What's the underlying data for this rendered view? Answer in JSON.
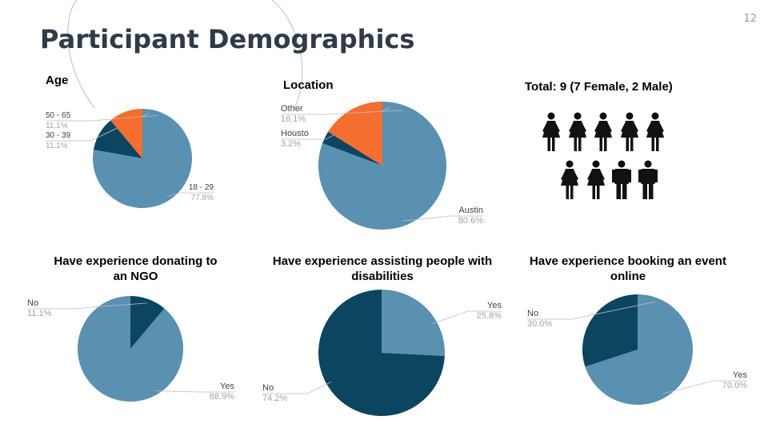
{
  "page_number": "12",
  "slide_title": "Participant Demographics",
  "colors": {
    "blue": "#5a90b0",
    "navy": "#0c4560",
    "orange": "#f46e30",
    "title": "#2f3b47"
  },
  "participants": {
    "total_text": "Total: 9 (7 Female, 2 Male)",
    "row1": [
      "female-icon",
      "female-icon",
      "female-icon",
      "female-icon",
      "female-icon"
    ],
    "row2": [
      "female-icon",
      "female-icon",
      "male-icon",
      "male-icon"
    ]
  },
  "chart_data": [
    {
      "type": "pie",
      "title": "Age",
      "slices": [
        {
          "label": "18 - 29",
          "value": 77.8,
          "pct": "77.8%",
          "color": "#5a90b0"
        },
        {
          "label": "30 - 39",
          "value": 11.1,
          "pct": "11.1%",
          "color": "#0c4560"
        },
        {
          "label": "50 - 65",
          "value": 11.1,
          "pct": "11.1%",
          "color": "#f46e30"
        }
      ]
    },
    {
      "type": "pie",
      "title": "Location",
      "slices": [
        {
          "label": "Austin",
          "value": 80.6,
          "pct": "80.6%",
          "color": "#5a90b0"
        },
        {
          "label": "Housto",
          "value": 3.2,
          "pct": "3.2%",
          "color": "#0c4560"
        },
        {
          "label": "Other",
          "value": 16.1,
          "pct": "16.1%",
          "color": "#f46e30"
        }
      ]
    },
    {
      "type": "pie",
      "title": "Have experience donating to an NGO",
      "slices": [
        {
          "label": "Yes",
          "value": 88.9,
          "pct": "88.9%",
          "color": "#5a90b0"
        },
        {
          "label": "No",
          "value": 11.1,
          "pct": "11.1%",
          "color": "#0c4560"
        }
      ]
    },
    {
      "type": "pie",
      "title": "Have experience assisting people with disabilities",
      "slices": [
        {
          "label": "Yes",
          "value": 25.8,
          "pct": "25.8%",
          "color": "#5a90b0"
        },
        {
          "label": "No",
          "value": 74.2,
          "pct": "74.2%",
          "color": "#0c4560"
        }
      ]
    },
    {
      "type": "pie",
      "title": "Have experience booking an event online",
      "slices": [
        {
          "label": "Yes",
          "value": 70.0,
          "pct": "70.0%",
          "color": "#5a90b0"
        },
        {
          "label": "No",
          "value": 30.0,
          "pct": "30.0%",
          "color": "#0c4560"
        }
      ]
    }
  ]
}
